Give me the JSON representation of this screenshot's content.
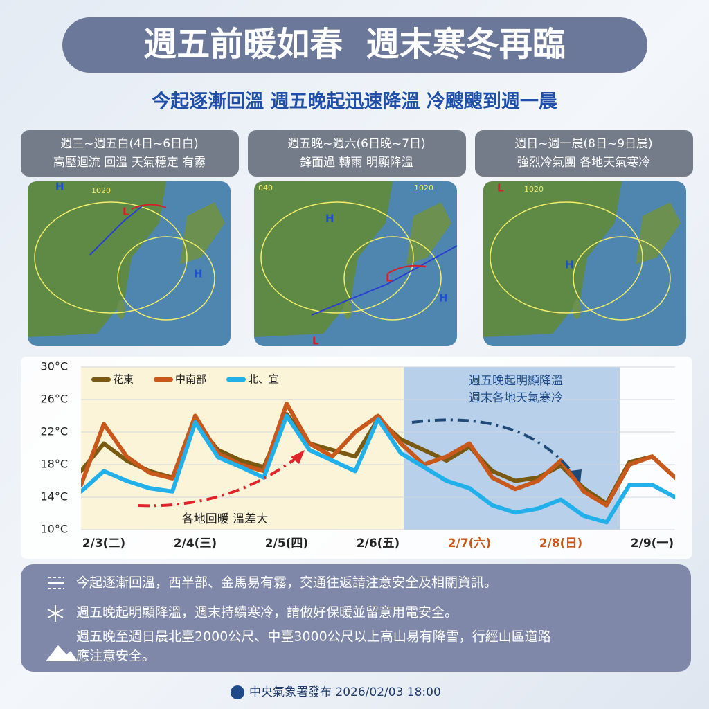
{
  "header": {
    "title": "週五前暖如春  週末寒冬再臨",
    "subtitle": "今起逐漸回溫 週五晚起迅速降溫 冷颼颼到週一晨"
  },
  "panels": [
    {
      "line1": "週三~週五白(4日~6日白)",
      "line2": "高壓迴流 回溫 天氣穩定 有霧",
      "markers": [
        "H",
        "L",
        "H",
        "1020"
      ]
    },
    {
      "line1": "週五晚~週六(6日晚~7日)",
      "line2": "鋒面過 轉雨 明顯降溫",
      "markers": [
        "040",
        "H",
        "L",
        "H",
        "L",
        "1020"
      ]
    },
    {
      "line1": "週日~週一晨(8日~9日晨)",
      "line2": "強烈冷氣團 各地天氣寒冷",
      "markers": [
        "L",
        "1020",
        "H"
      ]
    }
  ],
  "chart_data": {
    "type": "line",
    "categories": [
      null,
      "2/3(二)",
      null,
      null,
      null,
      "2/4(三)",
      null,
      null,
      null,
      "2/5(四)",
      null,
      null,
      null,
      "2/6(五)",
      null,
      null,
      null,
      "2/7(六)",
      null,
      null,
      null,
      "2/8(日)",
      null,
      null,
      null,
      "2/9(一)",
      null
    ],
    "series": [
      {
        "name": "花東",
        "color": "#7a5a12",
        "values": [
          17.2,
          20.6,
          18.5,
          17.2,
          16.4,
          23.2,
          19.8,
          18.5,
          17.7,
          24.2,
          20.6,
          19.8,
          19,
          23.6,
          21.1,
          19.8,
          18.5,
          20.2,
          17.2,
          16,
          16.4,
          17.9,
          15.1,
          13.2,
          18.3,
          19,
          16.4
        ]
      },
      {
        "name": "中南部",
        "color": "#c8581c",
        "values": [
          15.5,
          23,
          19,
          17,
          16.3,
          24,
          19.4,
          18,
          17.2,
          25.5,
          20.6,
          19,
          22,
          24,
          20.6,
          18,
          19,
          20.6,
          16.4,
          15,
          16,
          18.5,
          14.7,
          13,
          18,
          19,
          16.4
        ]
      },
      {
        "name": "北、宜",
        "color": "#22b0ea",
        "values": [
          14.7,
          17.2,
          16,
          15.1,
          14.7,
          23.2,
          18.9,
          17.7,
          16.4,
          24,
          19.8,
          18.5,
          17.2,
          23.6,
          19.4,
          17.7,
          16,
          15.1,
          13,
          12.1,
          12.6,
          13.7,
          11.7,
          10.9,
          15.5,
          15.5,
          14
        ]
      }
    ],
    "ylim": [
      10,
      30
    ],
    "yticks": [
      {
        "value": 10,
        "label": "10°C"
      },
      {
        "value": 14,
        "label": "14°C"
      },
      {
        "value": 18,
        "label": "18°C"
      },
      {
        "value": 22,
        "label": "22°C"
      },
      {
        "value": 26,
        "label": "26°C"
      },
      {
        "value": 30,
        "label": "30°C"
      }
    ],
    "grid": true,
    "annotations": [
      "週五晚起明顯降溫",
      "週末各地天氣寒冷",
      "各地回暖 溫差大"
    ]
  },
  "notes": [
    "今起逐漸回溫，西半部、金馬易有霧，交通往返請注意安全及相關資訊。",
    "週五晚起明顯降溫，週末持續寒冷，請做好保暖並留意用電安全。",
    "週五晚至週日晨北臺2000公尺、中臺3000公尺以上高山易有降雪，行經山區道路",
    "應注意安全。"
  ],
  "footer": "中央氣象署發布 2026/02/03 18:00"
}
